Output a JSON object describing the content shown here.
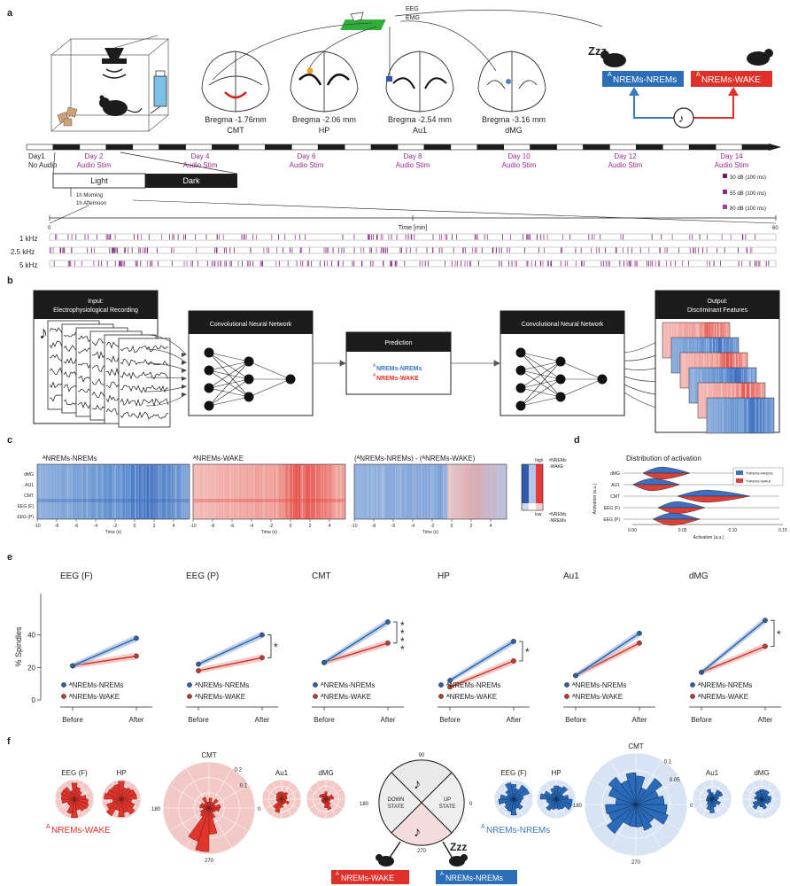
{
  "colors": {
    "blue": "#3f76c2",
    "red": "#e0352b",
    "magenta": "#9b2a8f",
    "dark": "#1c1c1c"
  },
  "panel_letters": [
    "a",
    "b",
    "c",
    "d",
    "e",
    "f"
  ],
  "panel_a": {
    "electrodes": [
      "EEG",
      "EMG"
    ],
    "brains": [
      {
        "bregma": "Bregma -1.76mm",
        "region": "CMT"
      },
      {
        "bregma": "Bregma -2.06 mm",
        "region": "HP"
      },
      {
        "bregma": "Bregma -2.54 mm",
        "region": "Au1"
      },
      {
        "bregma": "Bregma -3.16 mm",
        "region": "dMG"
      }
    ],
    "zzz": "Zzz",
    "state_nrem": "NREMs-NREMs",
    "state_wake": "NREMs-WAKE",
    "state_prefix": "A",
    "days": [
      {
        "day": "Day1",
        "sub": "No Audio"
      },
      {
        "day": "Day 2",
        "sub": "Audio Stim"
      },
      {
        "day": "Day 4",
        "sub": "Audio Stim"
      },
      {
        "day": "Day 6",
        "sub": "Audio Stim"
      },
      {
        "day": "Day 8",
        "sub": "Audio Stim"
      },
      {
        "day": "Day 10",
        "sub": "Audio Stim"
      },
      {
        "day": "Day 12",
        "sub": "Audio Stim"
      },
      {
        "day": "Day 14",
        "sub": "Audio Stim"
      }
    ],
    "light": "Light",
    "dark": "Dark",
    "session_lines": [
      "1h Morning",
      "1h Afternoon"
    ],
    "dose_legend": [
      "30 dB (100 ms)",
      "55 dB (100 ms)",
      "80 dB (100 ms)"
    ],
    "time_axis": {
      "label": "Time [min]",
      "start": "0",
      "end": "60"
    },
    "frequencies": [
      "1 kHz",
      "2.5 kHz",
      "5 kHz"
    ]
  },
  "panel_b": {
    "input_title_1": "Input:",
    "input_title_2": "Electrophysiological Recording",
    "cnn_title": "Convolutional Neural Network",
    "prediction_title": "Prediction",
    "prediction_nrem": "NREMs-NREMs",
    "prediction_wake": "NREMs-WAKE",
    "output_title_1": "Output:",
    "output_title_2": "Discriminant Features"
  },
  "panel_c": {
    "titles": [
      "ᴬNREMs-NREMs",
      "ᴬNREMs-WAKE",
      "(ᴬNREMs-NREMs) - (ᴬNREMs-WAKE)"
    ],
    "rows": [
      "dMG",
      "AU1",
      "CMT",
      "EEG (F)",
      "EEG (P)"
    ],
    "x_ticks": [
      "-10",
      "-8",
      "-6",
      "-4",
      "-2",
      "0",
      "2",
      "4"
    ],
    "x_label": "Time (s)",
    "scale_high": "high",
    "scale_low": "low",
    "side_top_1": "ᴬNREMs",
    "side_top_2": "-WAKE",
    "side_bot_1": "ᴬNREMs",
    "side_bot_2": "-NREMs"
  },
  "panel_d": {
    "title": "Distribution of activation",
    "ylabel": "Activation (a.u.)",
    "xlabel": "Activation (a.u.)",
    "legend": [
      "ᴬNREMs-NREMs",
      "ᴬNREMs-WAKE"
    ]
  },
  "panel_e": {
    "ylabel": "% Spindles",
    "xcats": [
      "Before",
      "After"
    ],
    "legend": [
      "ᴬNREMs-NREMs",
      "ᴬNREMs-WAKE"
    ]
  },
  "panel_f": {
    "wake_label_prefix": "A",
    "wake_label": "NREMs-WAKE",
    "nrem_label_prefix": "A",
    "nrem_label": "NREMs-NREMs",
    "roses_left": [
      "EEG (F)",
      "HP",
      "CMT",
      "Au1",
      "dMG"
    ],
    "roses_right": [
      "EEG (F)",
      "HP",
      "CMT",
      "Au1",
      "dMG"
    ],
    "cmt_ticks_left": [
      "0.2",
      "0.1"
    ],
    "cmt_ticks_right": [
      "0.1",
      "0.05"
    ],
    "angles": [
      "0",
      "180",
      "270",
      "90"
    ],
    "down_state": [
      "DOWN",
      "STATE"
    ],
    "up_state": [
      "UP",
      "STATE"
    ],
    "box_wake": "NREMs-WAKE",
    "box_nrem": "NREMs-NREMs",
    "zzz": "Zzz"
  },
  "chart_data": [
    {
      "type": "line",
      "panel": "e",
      "ylabel": "% Spindles",
      "ylim": [
        0,
        60
      ],
      "yticks": [
        0,
        20,
        40
      ],
      "categories": [
        "Before",
        "After"
      ],
      "subplots": [
        {
          "title": "EEG (F)",
          "nrem": [
            21,
            38
          ],
          "wake": [
            21,
            27
          ],
          "sig": ""
        },
        {
          "title": "EEG (P)",
          "nrem": [
            22,
            40
          ],
          "wake": [
            18,
            26
          ],
          "sig": "*"
        },
        {
          "title": "CMT",
          "nrem": [
            23,
            48
          ],
          "wake": [
            23,
            35
          ],
          "sig": "****"
        },
        {
          "title": "HP",
          "nrem": [
            12,
            36
          ],
          "wake": [
            8,
            24
          ],
          "sig": "*"
        },
        {
          "title": "Au1",
          "nrem": [
            15,
            41
          ],
          "wake": [
            15,
            35
          ],
          "sig": ""
        },
        {
          "title": "dMG",
          "nrem": [
            17,
            49
          ],
          "wake": [
            17,
            33
          ],
          "sig": "*"
        }
      ]
    },
    {
      "type": "violin",
      "panel": "d",
      "categories": [
        "dMG",
        "AU1",
        "CMT",
        "EEG (F)",
        "EEG (P)"
      ],
      "xlim": [
        0.0,
        0.15
      ],
      "xticks": [
        "0.00",
        "0.05",
        "0.10",
        "0.15"
      ],
      "nrem_centers": [
        0.03,
        0.02,
        0.075,
        0.045,
        0.04
      ],
      "wake_centers": [
        0.03,
        0.02,
        0.075,
        0.045,
        0.04
      ]
    }
  ]
}
